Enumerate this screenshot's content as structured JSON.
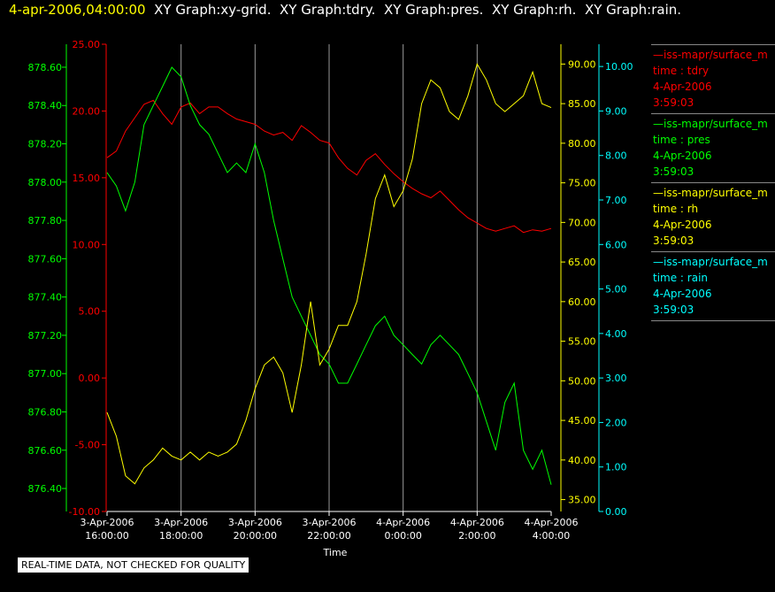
{
  "header": {
    "timestamp": "4-apr-2006,04:00:00",
    "titles": [
      "XY Graph:xy-grid.",
      "XY Graph:tdry.",
      "XY Graph:pres.",
      "XY Graph:rh.",
      "XY Graph:rain."
    ]
  },
  "legend": [
    {
      "name": "—iss-mapr/surface_m",
      "field": "time : tdry",
      "date": "4-Apr-2006",
      "time": "3:59:03",
      "color": "#ff0000"
    },
    {
      "name": "—iss-mapr/surface_m",
      "field": "time : pres",
      "date": "4-Apr-2006",
      "time": "3:59:03",
      "color": "#00ff00"
    },
    {
      "name": "—iss-mapr/surface_m",
      "field": "time : rh",
      "date": "4-Apr-2006",
      "time": "3:59:03",
      "color": "#ffff00"
    },
    {
      "name": "—iss-mapr/surface_m",
      "field": "time : rain",
      "date": "4-Apr-2006",
      "time": "3:59:03",
      "color": "#00ffff"
    }
  ],
  "disclaimer": "REAL-TIME DATA, NOT CHECKED FOR QUALITY",
  "chart_data": {
    "type": "line",
    "xlabel": "Time",
    "x_ticks": [
      {
        "h": 0,
        "l1": "3-Apr-2006",
        "l2": "16:00:00"
      },
      {
        "h": 2,
        "l1": "3-Apr-2006",
        "l2": "18:00:00"
      },
      {
        "h": 4,
        "l1": "3-Apr-2006",
        "l2": "20:00:00"
      },
      {
        "h": 6,
        "l1": "3-Apr-2006",
        "l2": "22:00:00"
      },
      {
        "h": 8,
        "l1": "4-Apr-2006",
        "l2": "0:00:00"
      },
      {
        "h": 10,
        "l1": "4-Apr-2006",
        "l2": "2:00:00"
      },
      {
        "h": 12,
        "l1": "4-Apr-2006",
        "l2": "4:00:00"
      }
    ],
    "axes": {
      "pres": {
        "color": "#00ff00",
        "ylim": [
          876.28,
          878.72
        ],
        "ticks": [
          "876.40",
          "876.60",
          "876.80",
          "877.00",
          "877.20",
          "877.40",
          "877.60",
          "877.80",
          "878.00",
          "878.20",
          "878.40",
          "878.60"
        ]
      },
      "tdry": {
        "color": "#ff0000",
        "ylim": [
          -10,
          25
        ],
        "ticks": [
          "-10.00",
          "-5.00",
          "0.00",
          "5.00",
          "10.00",
          "15.00",
          "20.00",
          "25.00"
        ]
      },
      "rh": {
        "color": "#ffff00",
        "ylim": [
          33.5,
          92.5
        ],
        "ticks": [
          "35.00",
          "40.00",
          "45.00",
          "50.00",
          "55.00",
          "60.00",
          "65.00",
          "70.00",
          "75.00",
          "80.00",
          "85.00",
          "90.00"
        ]
      },
      "rain": {
        "color": "#00ffff",
        "ylim": [
          0,
          10.5
        ],
        "ticks": [
          "0.00",
          "1.00",
          "2.00",
          "3.00",
          "4.00",
          "5.00",
          "6.00",
          "7.00",
          "8.00",
          "9.00",
          "10.00"
        ]
      }
    },
    "series": [
      {
        "key": "tdry",
        "color": "#ff0000",
        "x": [
          0,
          0.25,
          0.5,
          0.75,
          1,
          1.25,
          1.5,
          1.75,
          2,
          2.25,
          2.5,
          2.75,
          3,
          3.25,
          3.5,
          3.75,
          4,
          4.25,
          4.5,
          4.75,
          5,
          5.25,
          5.5,
          5.75,
          6,
          6.25,
          6.5,
          6.75,
          7,
          7.25,
          7.5,
          7.75,
          8,
          8.25,
          8.5,
          8.75,
          9,
          9.25,
          9.5,
          9.75,
          10,
          10.25,
          10.5,
          10.75,
          11,
          11.25,
          11.5,
          11.75,
          12
        ],
        "y": [
          16.5,
          17,
          18.5,
          19.5,
          20.5,
          20.8,
          19.8,
          19,
          20.3,
          20.6,
          19.8,
          20.3,
          20.3,
          19.8,
          19.4,
          19.2,
          19,
          18.5,
          18.2,
          18.4,
          17.8,
          18.9,
          18.4,
          17.8,
          17.6,
          16.5,
          15.7,
          15.2,
          16.3,
          16.8,
          16,
          15.3,
          14.7,
          14.2,
          13.8,
          13.5,
          14,
          13.3,
          12.6,
          12,
          11.6,
          11.2,
          11,
          11.2,
          11.4,
          10.9,
          11.1,
          11,
          11.2
        ]
      },
      {
        "key": "pres",
        "color": "#00ff00",
        "x": [
          0,
          0.25,
          0.5,
          0.75,
          1,
          1.25,
          1.5,
          1.75,
          2,
          2.25,
          2.5,
          2.75,
          3,
          3.25,
          3.5,
          3.75,
          4,
          4.25,
          4.5,
          4.75,
          5,
          5.25,
          5.5,
          5.75,
          6,
          6.25,
          6.5,
          6.75,
          7,
          7.25,
          7.5,
          7.75,
          8,
          8.25,
          8.5,
          8.75,
          9,
          9.25,
          9.5,
          9.75,
          10,
          10.25,
          10.5,
          10.75,
          11,
          11.25,
          11.5,
          11.75,
          12
        ],
        "y": [
          878.05,
          877.98,
          877.85,
          878.0,
          878.3,
          878.4,
          878.5,
          878.6,
          878.55,
          878.4,
          878.3,
          878.25,
          878.15,
          878.05,
          878.1,
          878.05,
          878.2,
          878.05,
          877.8,
          877.6,
          877.4,
          877.3,
          877.2,
          877.1,
          877.05,
          876.95,
          876.95,
          877.05,
          877.15,
          877.25,
          877.3,
          877.2,
          877.15,
          877.1,
          877.05,
          877.15,
          877.2,
          877.15,
          877.1,
          877.0,
          876.9,
          876.75,
          876.6,
          876.85,
          876.95,
          876.6,
          876.5,
          876.6,
          876.42
        ]
      },
      {
        "key": "rh",
        "color": "#ffff00",
        "x": [
          0,
          0.25,
          0.5,
          0.75,
          1,
          1.25,
          1.5,
          1.75,
          2,
          2.25,
          2.5,
          2.75,
          3,
          3.25,
          3.5,
          3.75,
          4,
          4.25,
          4.5,
          4.75,
          5,
          5.25,
          5.5,
          5.75,
          6,
          6.25,
          6.5,
          6.75,
          7,
          7.25,
          7.5,
          7.75,
          8,
          8.25,
          8.5,
          8.75,
          9,
          9.25,
          9.5,
          9.75,
          10,
          10.25,
          10.5,
          10.75,
          11,
          11.25,
          11.5,
          11.75,
          12
        ],
        "y": [
          46,
          43,
          38,
          37,
          39,
          40,
          41.5,
          40.5,
          40,
          41,
          40,
          41,
          40.5,
          41,
          42,
          45,
          49,
          52,
          53,
          51,
          46,
          52,
          60,
          52,
          54,
          57,
          57,
          60,
          66,
          73,
          76,
          72,
          74,
          78,
          85,
          88,
          87,
          84,
          83,
          86,
          90,
          88,
          85,
          84,
          85,
          86,
          89,
          85,
          84.5
        ]
      },
      {
        "key": "rain",
        "color": "#00ffff",
        "x": [
          0,
          1,
          2,
          3,
          4,
          5,
          6,
          7,
          8,
          9,
          10,
          11,
          12
        ],
        "y": [
          0,
          0,
          0,
          0,
          0,
          0,
          0,
          0,
          0,
          0,
          0,
          0,
          0
        ]
      }
    ]
  }
}
